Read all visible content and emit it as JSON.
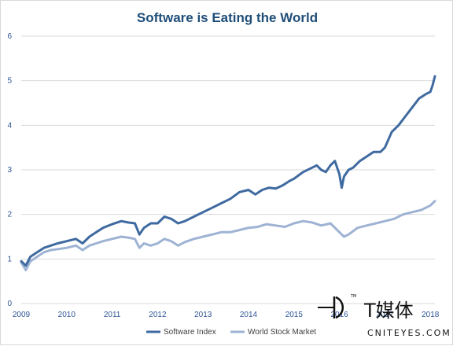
{
  "chart_data": {
    "type": "line",
    "title": "Software is Eating the World",
    "xlabel": "",
    "ylabel": "",
    "xlim": [
      2009,
      2018.1
    ],
    "ylim": [
      0,
      6
    ],
    "x_ticks": [
      "2009",
      "2010",
      "2011",
      "2012",
      "2013",
      "2014",
      "2015",
      "2016",
      "2017",
      "2018"
    ],
    "y_ticks": [
      "0",
      "1",
      "2",
      "3",
      "4",
      "5",
      "6"
    ],
    "grid": "horizontal",
    "legend_position": "bottom",
    "series": [
      {
        "name": "Software Index",
        "color": "#3f6aa0",
        "x": [
          2009.0,
          2009.1,
          2009.2,
          2009.35,
          2009.5,
          2009.65,
          2009.8,
          2010.0,
          2010.2,
          2010.35,
          2010.5,
          2010.65,
          2010.8,
          2011.0,
          2011.2,
          2011.35,
          2011.5,
          2011.6,
          2011.7,
          2011.85,
          2012.0,
          2012.15,
          2012.3,
          2012.45,
          2012.6,
          2012.8,
          2013.0,
          2013.2,
          2013.4,
          2013.6,
          2013.8,
          2014.0,
          2014.15,
          2014.3,
          2014.45,
          2014.6,
          2014.75,
          2014.9,
          2015.0,
          2015.2,
          2015.4,
          2015.5,
          2015.6,
          2015.7,
          2015.8,
          2015.9,
          2016.0,
          2016.05,
          2016.1,
          2016.2,
          2016.3,
          2016.45,
          2016.6,
          2016.75,
          2016.9,
          2017.0,
          2017.15,
          2017.3,
          2017.45,
          2017.6,
          2017.75,
          2017.9,
          2018.0,
          2018.05,
          2018.1
        ],
        "values": [
          0.95,
          0.85,
          1.05,
          1.15,
          1.25,
          1.3,
          1.35,
          1.4,
          1.45,
          1.35,
          1.5,
          1.6,
          1.7,
          1.78,
          1.85,
          1.82,
          1.8,
          1.55,
          1.7,
          1.8,
          1.8,
          1.95,
          1.9,
          1.8,
          1.85,
          1.95,
          2.05,
          2.15,
          2.25,
          2.35,
          2.5,
          2.55,
          2.45,
          2.55,
          2.6,
          2.58,
          2.65,
          2.75,
          2.8,
          2.95,
          3.05,
          3.1,
          3.0,
          2.95,
          3.1,
          3.2,
          2.9,
          2.6,
          2.85,
          3.0,
          3.05,
          3.2,
          3.3,
          3.4,
          3.4,
          3.5,
          3.85,
          4.0,
          4.2,
          4.4,
          4.6,
          4.7,
          4.75,
          4.9,
          5.1
        ]
      },
      {
        "name": "World Stock Market",
        "color": "#9eb3d3",
        "x": [
          2009.0,
          2009.1,
          2009.2,
          2009.35,
          2009.5,
          2009.65,
          2009.8,
          2010.0,
          2010.2,
          2010.35,
          2010.5,
          2010.65,
          2010.8,
          2011.0,
          2011.2,
          2011.35,
          2011.5,
          2011.6,
          2011.7,
          2011.85,
          2012.0,
          2012.15,
          2012.3,
          2012.45,
          2012.6,
          2012.8,
          2013.0,
          2013.2,
          2013.4,
          2013.6,
          2013.8,
          2014.0,
          2014.2,
          2014.4,
          2014.6,
          2014.8,
          2015.0,
          2015.2,
          2015.4,
          2015.6,
          2015.8,
          2016.0,
          2016.1,
          2016.2,
          2016.4,
          2016.6,
          2016.8,
          2017.0,
          2017.2,
          2017.4,
          2017.6,
          2017.8,
          2018.0,
          2018.05,
          2018.1
        ],
        "values": [
          0.92,
          0.75,
          0.95,
          1.05,
          1.15,
          1.2,
          1.22,
          1.25,
          1.3,
          1.2,
          1.3,
          1.35,
          1.4,
          1.45,
          1.5,
          1.48,
          1.45,
          1.25,
          1.35,
          1.3,
          1.35,
          1.45,
          1.4,
          1.3,
          1.38,
          1.45,
          1.5,
          1.55,
          1.6,
          1.6,
          1.65,
          1.7,
          1.72,
          1.78,
          1.75,
          1.72,
          1.8,
          1.85,
          1.82,
          1.75,
          1.8,
          1.6,
          1.5,
          1.55,
          1.7,
          1.75,
          1.8,
          1.85,
          1.9,
          2.0,
          2.05,
          2.1,
          2.2,
          2.25,
          2.3
        ]
      }
    ]
  },
  "watermark": {
    "logo_text": "T媒体",
    "domain_text": "CNITEYES.COM",
    "tm": "TM"
  }
}
